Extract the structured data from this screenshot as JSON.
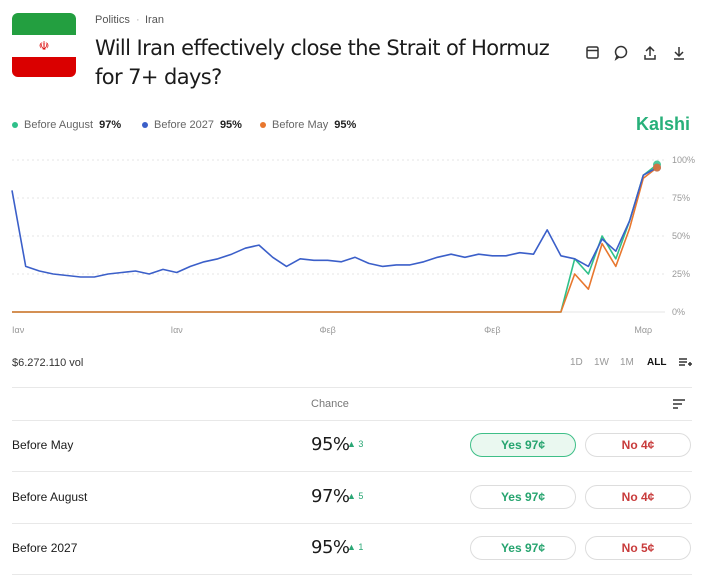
{
  "header": {
    "tags": [
      "Politics",
      "Iran"
    ],
    "title": "Will Iran effectively close the Strait of Hormuz for 7+ days?",
    "brand": "Kalshi"
  },
  "chart_data": {
    "type": "line",
    "categories": [
      "Ιαν",
      null,
      null,
      null,
      null,
      null,
      null,
      null,
      null,
      null,
      null,
      null,
      "Ιαν",
      null,
      null,
      null,
      null,
      null,
      null,
      null,
      null,
      null,
      null,
      "Φεβ",
      null,
      null,
      null,
      null,
      null,
      null,
      null,
      null,
      null,
      null,
      null,
      "Φεβ",
      null,
      null,
      null,
      null,
      null,
      null,
      null,
      null,
      null,
      null,
      "Μαρ",
      null
    ],
    "series": [
      {
        "name": "Before August",
        "color": "#2fc08a",
        "current_label": "97%",
        "values": [
          0,
          0,
          0,
          0,
          0,
          0,
          0,
          0,
          0,
          0,
          0,
          0,
          0,
          0,
          0,
          0,
          0,
          0,
          0,
          0,
          0,
          0,
          0,
          0,
          0,
          0,
          0,
          0,
          0,
          0,
          0,
          0,
          0,
          0,
          0,
          0,
          0,
          0,
          0,
          0,
          0,
          35,
          25,
          50,
          35,
          60,
          90,
          97
        ]
      },
      {
        "name": "Before 2027",
        "color": "#3b5fc9",
        "current_label": "95%",
        "values": [
          80,
          30,
          27,
          25,
          24,
          23,
          23,
          25,
          26,
          27,
          25,
          28,
          26,
          30,
          33,
          35,
          38,
          42,
          44,
          36,
          30,
          35,
          34,
          34,
          33,
          36,
          32,
          30,
          31,
          31,
          33,
          36,
          38,
          36,
          38,
          37,
          37,
          39,
          38,
          54,
          37,
          35,
          30,
          48,
          40,
          60,
          90,
          95
        ]
      },
      {
        "name": "Before May",
        "color": "#e8772e",
        "current_label": "95%",
        "values": [
          0,
          0,
          0,
          0,
          0,
          0,
          0,
          0,
          0,
          0,
          0,
          0,
          0,
          0,
          0,
          0,
          0,
          0,
          0,
          0,
          0,
          0,
          0,
          0,
          0,
          0,
          0,
          0,
          0,
          0,
          0,
          0,
          0,
          0,
          0,
          0,
          0,
          0,
          0,
          0,
          0,
          25,
          15,
          45,
          30,
          55,
          88,
          95
        ]
      }
    ],
    "ylim": [
      0,
      100
    ],
    "yticks": [
      {
        "value": 0,
        "label": "0%"
      },
      {
        "value": 25,
        "label": "25%"
      },
      {
        "value": 50,
        "label": "50%"
      },
      {
        "value": 75,
        "label": "75%"
      },
      {
        "value": 100,
        "label": "100%"
      }
    ],
    "grid": true
  },
  "volume": "$6.272.110 vol",
  "ranges": [
    "1D",
    "1W",
    "1M",
    "ALL"
  ],
  "table": {
    "header": "Chance",
    "rows": [
      {
        "name": "Before May",
        "chance": "95%",
        "change": "3",
        "yes": "Yes 97¢",
        "no": "No 4¢"
      },
      {
        "name": "Before August",
        "chance": "97%",
        "change": "5",
        "yes": "Yes 97¢",
        "no": "No 4¢"
      },
      {
        "name": "Before 2027",
        "chance": "95%",
        "change": "1",
        "yes": "Yes 97¢",
        "no": "No 5¢"
      }
    ]
  }
}
